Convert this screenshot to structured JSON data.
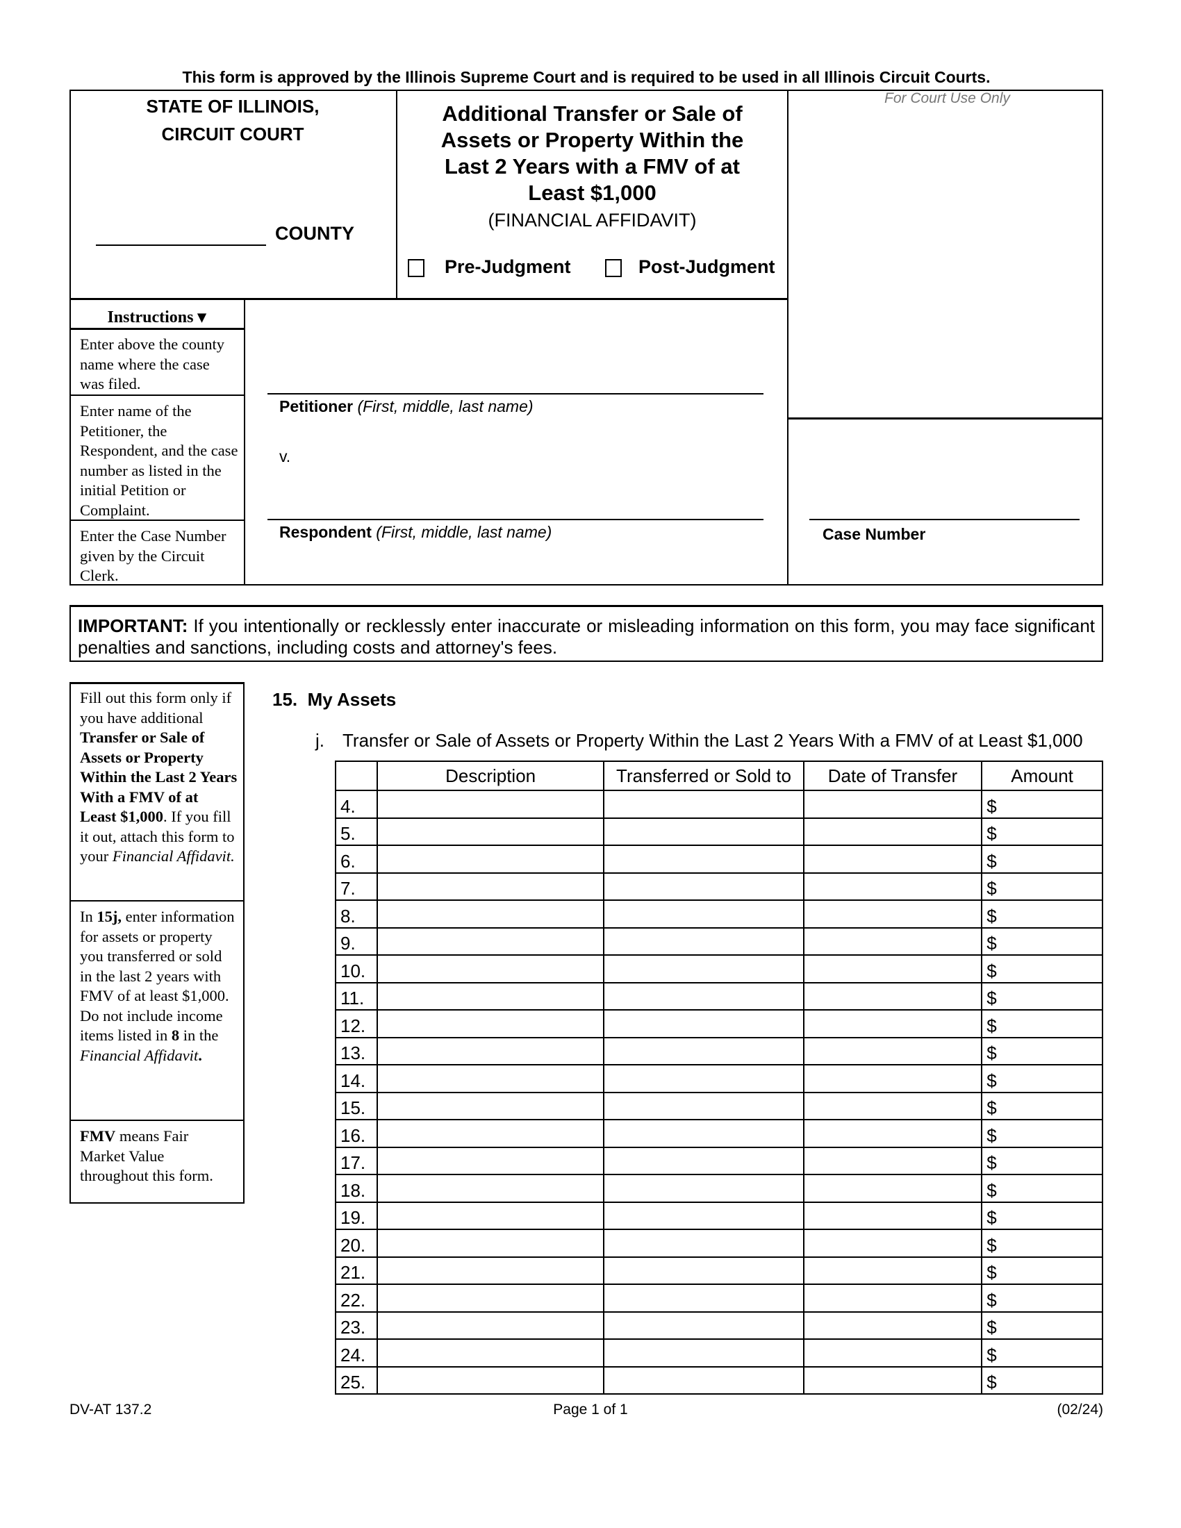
{
  "approval_notice": "This form is approved by the Illinois Supreme Court and is required to be used in all Illinois Circuit Courts.",
  "court": {
    "line1": "STATE OF ILLINOIS,",
    "line2": "CIRCUIT COURT",
    "county_label": "COUNTY",
    "county_value": ""
  },
  "title": {
    "lines": [
      "Additional Transfer or Sale of",
      "Assets or Property Within the",
      "Last 2 Years with a FMV of at",
      "Least $1,000"
    ],
    "subtitle": "(FINANCIAL AFFIDAVIT)",
    "pre_judgment": "Pre-Judgment",
    "post_judgment": "Post-Judgment"
  },
  "court_use": "For Court Use Only",
  "instructions": {
    "header": "Instructions ▾",
    "county": "Enter above the county name where the case was filed.",
    "names": "Enter name of the Petitioner, the Respondent, and the case number as listed in the initial Petition or Complaint.",
    "case": "Enter the Case Number given by the Circuit Clerk."
  },
  "parties": {
    "petitioner_label": "Petitioner",
    "petitioner_hint": "(First, middle, last name)",
    "versus": "v.",
    "respondent_label": "Respondent",
    "respondent_hint": "(First, middle, last name)",
    "case_number_label": "Case Number"
  },
  "important": {
    "label": "IMPORTANT:",
    "text": " If you intentionally or recklessly enter inaccurate or misleading information on this form, you may face significant penalties and sanctions, including costs and attorney's fees."
  },
  "sidebar": {
    "box1": [
      {
        "t": "Fill out this form only if you have additional ",
        "s": ""
      },
      {
        "t": "Transfer or Sale of Assets or Property Within the Last 2 Years With a FMV of at Least $1,000",
        "s": "b"
      },
      {
        "t": ". If you fill it out, attach this form to your ",
        "s": ""
      },
      {
        "t": "Financial Affidavit.",
        "s": "i"
      }
    ],
    "box2": [
      {
        "t": "In ",
        "s": ""
      },
      {
        "t": "15j,",
        "s": "b"
      },
      {
        "t": " enter information for assets or property you transferred or sold in the last 2 years with FMV of at least $1,000.  Do not include income items listed in ",
        "s": ""
      },
      {
        "t": "8",
        "s": "b"
      },
      {
        "t": " in the ",
        "s": ""
      },
      {
        "t": "Financial Affidavit",
        "s": "i"
      },
      {
        "t": ".",
        "s": "b"
      }
    ],
    "box3": [
      {
        "t": "FMV",
        "s": "b"
      },
      {
        "t": " means Fair Market Value throughout this form.",
        "s": ""
      }
    ]
  },
  "section": {
    "heading": "15.  My Assets",
    "sub_letter": "j.",
    "sub_title": "Transfer or Sale of Assets or Property Within the Last 2 Years With a FMV of at Least $1,000"
  },
  "table": {
    "columns": [
      "",
      "Description",
      "Transferred or Sold to",
      "Date of Transfer",
      "Amount"
    ],
    "rows": [
      "4.",
      "5.",
      "6.",
      "7.",
      "8.",
      "9.",
      "10.",
      "11.",
      "12.",
      "13.",
      "14.",
      "15.",
      "16.",
      "17.",
      "18.",
      "19.",
      "20.",
      "21.",
      "22.",
      "23.",
      "24.",
      "25."
    ],
    "currency": "$"
  },
  "footer": {
    "form_id": "DV-AT 137.2",
    "page": "Page 1 of 1",
    "date": "(02/24)"
  }
}
